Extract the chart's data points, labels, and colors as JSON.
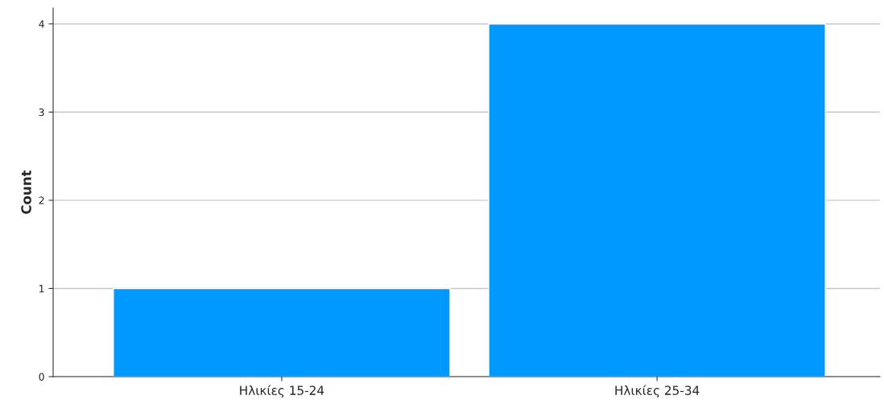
{
  "chart_data": {
    "type": "bar",
    "ylabel": "Count",
    "categories": [
      "Ηλικίες 15-24",
      "Ηλικίες 25-34"
    ],
    "values": [
      1,
      4
    ],
    "color": "#0099ff",
    "ylim": [
      0,
      4.18
    ],
    "yticks": [
      0,
      1,
      2,
      3,
      4
    ],
    "grid": "y",
    "legend": false
  }
}
